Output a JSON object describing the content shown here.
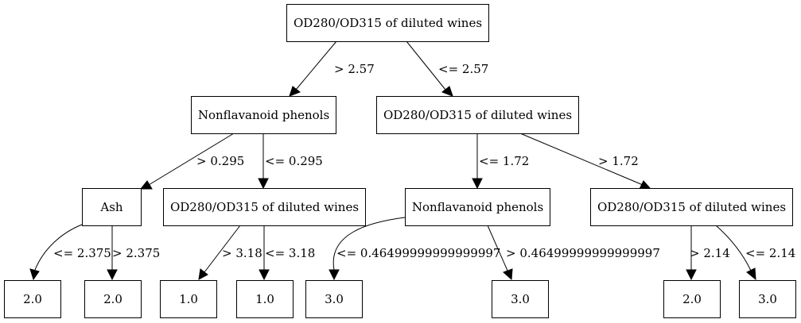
{
  "tree": {
    "nodes": {
      "root": "OD280/OD315 of diluted wines",
      "n_l": "Nonflavanoid phenols",
      "n_r": "OD280/OD315 of diluted wines",
      "n_ll": "Ash",
      "n_lr": "OD280/OD315 of diluted wines",
      "n_rl": "Nonflavanoid phenols",
      "n_rr": "OD280/OD315 of diluted wines",
      "leaf1": "2.0",
      "leaf2": "2.0",
      "leaf3": "1.0",
      "leaf4": "1.0",
      "leaf5": "3.0",
      "leaf6": "3.0",
      "leaf7": "2.0",
      "leaf8": "3.0"
    },
    "edges": {
      "root_l": "> 2.57",
      "root_r": "<= 2.57",
      "l_ll": "> 0.295",
      "l_lr": "<= 0.295",
      "r_rl": "<= 1.72",
      "r_rr": "> 1.72",
      "ll_1": "<= 2.375",
      "ll_2": "> 2.375",
      "lr_3": "> 3.18",
      "lr_4": "<= 3.18",
      "rl_5": "<= 0.46499999999999997",
      "rl_6": "> 0.46499999999999997",
      "rr_7": "> 2.14",
      "rr_8": "<= 2.14"
    }
  }
}
